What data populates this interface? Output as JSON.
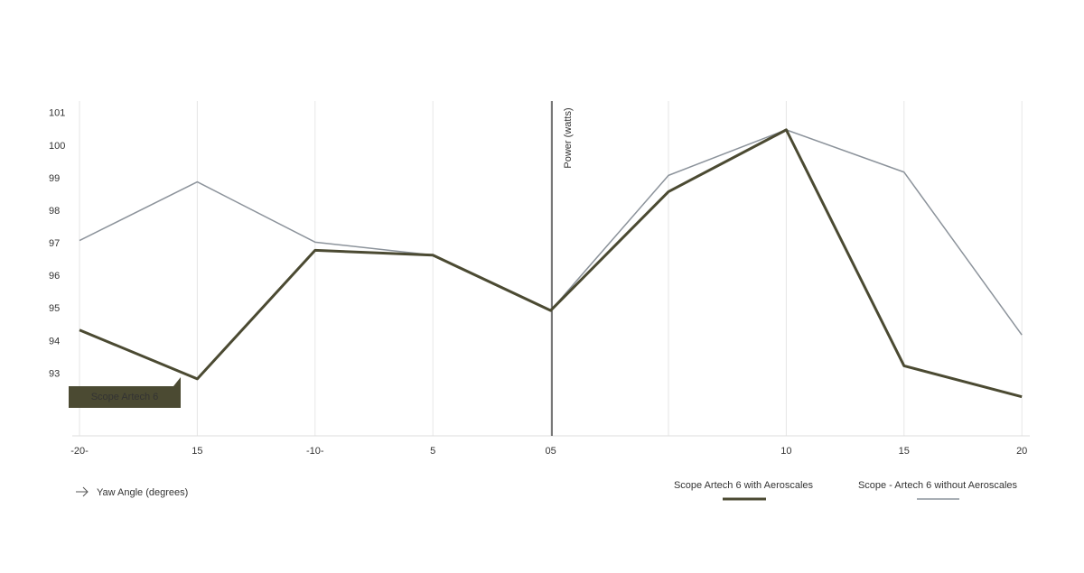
{
  "chart_data": {
    "type": "line",
    "y_label": "Power (watts)",
    "x_label": "Yaw Angle (degrees)",
    "annotation": "Scope Artech 6",
    "categories": [
      "-20-",
      "15",
      "-10-",
      "5",
      "05",
      null,
      "10",
      "15",
      "20"
    ],
    "series": [
      {
        "name": "Scope Artech 6 with Aeroscales",
        "color": "#4b4a32",
        "values": [
          94.35,
          92.85,
          96.8,
          96.65,
          94.95,
          98.6,
          100.5,
          93.25,
          92.3
        ]
      },
      {
        "name": "Scope - Artech 6 without Aeroscales",
        "color": "#8c939b",
        "values": [
          97.1,
          98.9,
          97.05,
          96.65,
          94.95,
          99.1,
          100.5,
          99.2,
          94.2
        ]
      }
    ],
    "ylim": [
      91.1,
      101.3
    ],
    "yticks": [
      93,
      94,
      95,
      96,
      97,
      98,
      99,
      100,
      101
    ],
    "grid": true
  }
}
